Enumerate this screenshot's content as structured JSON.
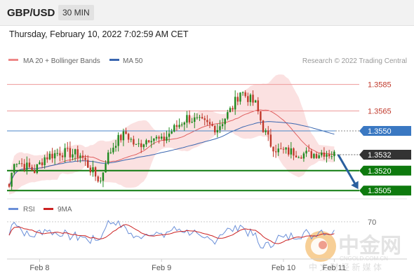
{
  "header": {
    "symbol": "GBP/USD",
    "timeframe": "30 MIN",
    "datetime": "Thursday, February 10, 2022 7:02:59 AM CET"
  },
  "legend": {
    "bb_label": "MA 20 + Bollinger Bands",
    "ma50_label": "MA 50",
    "source": "Research © 2022 Trading Central",
    "rsi_label": "RSI",
    "rsi_ma_label": "9MA"
  },
  "colors": {
    "bull": "#1f8a1f",
    "bear": "#c0392b",
    "band": "#fad4d4",
    "ma20": "#e06060",
    "ma50": "#3a66b0",
    "resistance": "#ee9a9a",
    "resistance_text": "#c0392b",
    "pivot": "#4a86c8",
    "support": "#0e7a0e",
    "current": "#333333",
    "arrow": "#2a5f9e",
    "rsi": "#6a8fd8",
    "rsi_ma": "#cc2222"
  },
  "watermark": {
    "main": "中金网",
    "url": "CNGOLD.COM.CN",
    "sub": "中 文 财 经 新 媒 体"
  },
  "chart_data": {
    "type": "candlestick",
    "ylim": [
      1.3503,
      1.3598
    ],
    "x_labels": [
      {
        "label": "Feb 8",
        "index": 12
      },
      {
        "label": "Feb 9",
        "index": 60
      },
      {
        "label": "Feb 10",
        "index": 108
      },
      {
        "label": "Feb 11",
        "index": 128
      }
    ],
    "key_levels": [
      {
        "value": 1.3585,
        "label": "1.3585",
        "role": "resistance"
      },
      {
        "value": 1.3565,
        "label": "1.3565",
        "role": "resistance"
      },
      {
        "value": 1.355,
        "label": "1.3550",
        "role": "pivot"
      },
      {
        "value": 1.3532,
        "label": "1.3532",
        "role": "current"
      },
      {
        "value": 1.352,
        "label": "1.3520",
        "role": "support"
      },
      {
        "value": 1.3505,
        "label": "1.3505",
        "role": "support"
      }
    ],
    "forecast": {
      "from_index": 129,
      "from_value": 1.3532,
      "to_index": 138,
      "to_value": 1.3505
    },
    "rsi": {
      "level": 70,
      "level_label": "70",
      "ylim": [
        15,
        80
      ]
    }
  }
}
